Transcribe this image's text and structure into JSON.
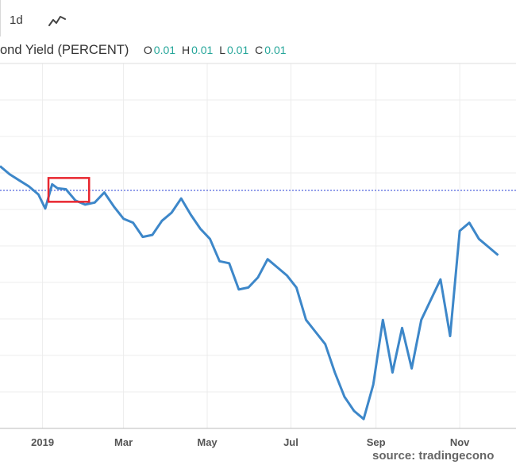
{
  "toolbar": {
    "interval_label": "1d",
    "chart_type_icon": "line-chart-icon"
  },
  "legend": {
    "title": "ond Yield (PERCENT)",
    "ohlc": [
      {
        "key": "O",
        "value": "0.01"
      },
      {
        "key": "H",
        "value": "0.01"
      },
      {
        "key": "L",
        "value": "0.01"
      },
      {
        "key": "C",
        "value": "0.01"
      }
    ]
  },
  "source": "source: tradingecono",
  "colors": {
    "line": "#3d87c9",
    "marker_box": "#e8262f",
    "reference_line": "#5566dd",
    "grid": "#ececec",
    "ohlc_value": "#26a69a"
  },
  "chart_data": {
    "type": "line",
    "x_ticks": [
      "2019",
      "Mar",
      "May",
      "Jul",
      "Sep",
      "Nov"
    ],
    "y_ticks": [],
    "grid": true,
    "highlight_window": [
      "2019-01-03",
      "2019-01-28"
    ],
    "reference_level": 0.0,
    "x": [
      "2018-12-01",
      "2018-12-08",
      "2018-12-15",
      "2018-12-22",
      "2018-12-29",
      "2019-01-03",
      "2019-01-08",
      "2019-01-12",
      "2019-01-18",
      "2019-01-25",
      "2019-02-01",
      "2019-02-08",
      "2019-02-15",
      "2019-02-22",
      "2019-03-01",
      "2019-03-08",
      "2019-03-15",
      "2019-03-22",
      "2019-03-29",
      "2019-04-05",
      "2019-04-12",
      "2019-04-19",
      "2019-04-26",
      "2019-05-03",
      "2019-05-10",
      "2019-05-17",
      "2019-05-24",
      "2019-05-31",
      "2019-06-07",
      "2019-06-14",
      "2019-06-21",
      "2019-06-28",
      "2019-07-05",
      "2019-07-12",
      "2019-07-19",
      "2019-07-26",
      "2019-08-02",
      "2019-08-09",
      "2019-08-16",
      "2019-08-23",
      "2019-08-30",
      "2019-09-06",
      "2019-09-13",
      "2019-09-20",
      "2019-09-27",
      "2019-10-04",
      "2019-10-11",
      "2019-10-18",
      "2019-10-25",
      "2019-11-01",
      "2019-11-08",
      "2019-11-15",
      "2019-11-22",
      "2019-11-29"
    ],
    "y": [
      0.6,
      0.4,
      0.25,
      0.1,
      -0.1,
      -0.45,
      0.15,
      0.05,
      0.03,
      -0.25,
      -0.35,
      -0.3,
      -0.05,
      -0.4,
      -0.7,
      -0.8,
      -1.15,
      -1.1,
      -0.75,
      -0.55,
      -0.2,
      -0.6,
      -0.95,
      -1.2,
      -1.75,
      -1.8,
      -2.45,
      -2.4,
      -2.15,
      -1.7,
      -1.9,
      -2.1,
      -2.4,
      -3.2,
      -3.5,
      -3.8,
      -4.5,
      -5.1,
      -5.45,
      -5.65,
      -4.8,
      -3.2,
      -4.5,
      -3.4,
      -4.4,
      -3.2,
      -2.7,
      -2.2,
      -3.6,
      -1.0,
      -0.8,
      -1.2,
      -1.4,
      -1.6
    ]
  }
}
